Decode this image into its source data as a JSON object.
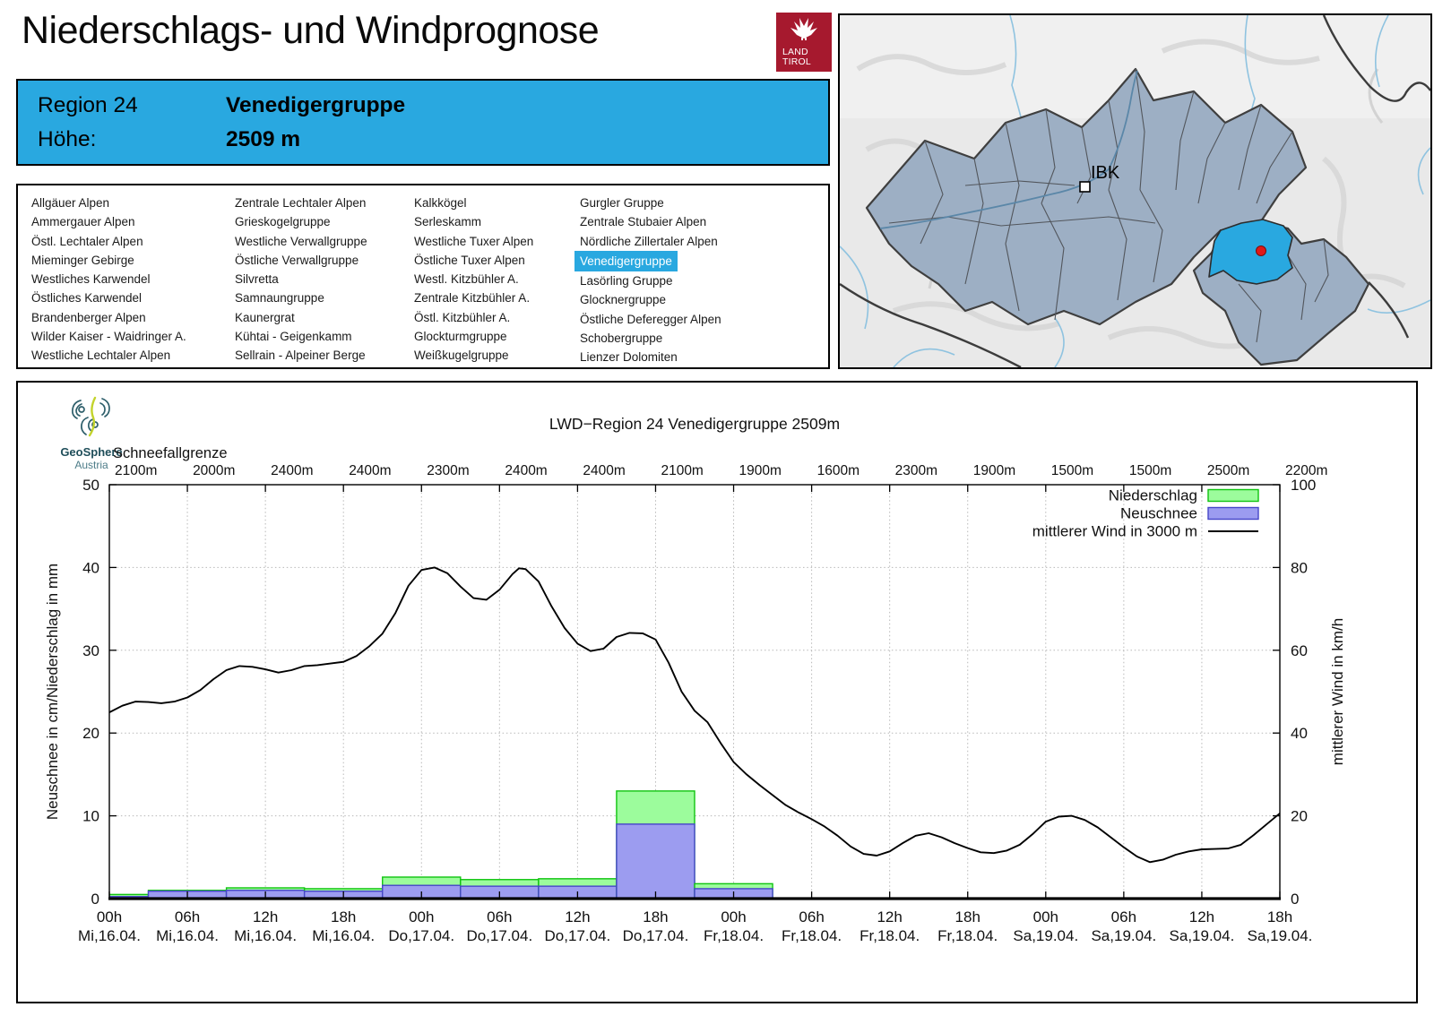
{
  "page": {
    "title": "Niederschlags- und Windprognose"
  },
  "land_tirol_logo": {
    "line1": "LAND",
    "line2": "TIROL"
  },
  "header": {
    "region_label": "Region 24",
    "region_name": "Venedigergruppe",
    "hoehe_label": "Höhe:",
    "hoehe_value": "2509 m"
  },
  "region_list": {
    "columns": [
      [
        "Allgäuer Alpen",
        "Ammergauer Alpen",
        "Östl. Lechtaler Alpen",
        "Mieminger Gebirge",
        "Westliches Karwendel",
        "Östliches Karwendel",
        "Brandenberger Alpen",
        "Wilder Kaiser - Waidringer A.",
        "Westliche Lechtaler Alpen"
      ],
      [
        "Zentrale Lechtaler Alpen",
        "Grieskogelgruppe",
        "Westliche Verwallgruppe",
        "Östliche Verwallgruppe",
        "Silvretta",
        "Samnaungruppe",
        "Kaunergrat",
        "Kühtai - Geigenkamm",
        "Sellrain - Alpeiner Berge"
      ],
      [
        "Kalkkögel",
        "Serleskamm",
        "Westliche Tuxer Alpen",
        "Östliche Tuxer Alpen",
        "Westl. Kitzbühler A.",
        "Zentrale Kitzbühler A.",
        "Östl. Kitzbühler A.",
        "Glockturmgruppe",
        "Weißkugelgruppe"
      ],
      [
        "Gurgler Gruppe",
        "Zentrale Stubaier Alpen",
        "Nördliche Zillertaler Alpen",
        "Venedigergruppe",
        "Lasörling Gruppe",
        "Glocknergruppe",
        "Östliche Deferegger Alpen",
        "Schobergruppe",
        "Lienzer Dolomiten"
      ]
    ],
    "highlighted": "Venedigergruppe"
  },
  "map": {
    "city_label": "IBK"
  },
  "geosphere": {
    "line1": "GeoSphere",
    "line2": "Austria"
  },
  "colors": {
    "accent_blue": "#29a8e0",
    "land_tirol_red": "#a6192e",
    "niederschlag_fill": "#9cfc9c",
    "niederschlag_border": "#10c410",
    "neuschnee_fill": "#9c9cf0",
    "neuschnee_border": "#4646c8",
    "wind_line": "#000000",
    "map_region_fill": "#9dafc4",
    "map_highlight": "#29a8e0",
    "marker_red": "#e01818"
  },
  "chart_data": {
    "type": "bar",
    "title": "LWD−Region 24 Venedigergruppe 2509m",
    "snowline_label": "Schneefallgrenze",
    "snowline_values": [
      "2100m",
      "2000m",
      "2400m",
      "2400m",
      "2300m",
      "2400m",
      "2400m",
      "2100m",
      "1900m",
      "1600m",
      "2300m",
      "1900m",
      "1500m",
      "1500m",
      "2500m",
      "2200m"
    ],
    "ylabel_left": "Neuschnee in cm/Niederschlag in mm",
    "ylabel_right": "mittlerer Wind in km/h",
    "ylim_left": [
      0,
      50
    ],
    "ylim_right": [
      0,
      100
    ],
    "yticks_left": [
      0,
      10,
      20,
      30,
      40,
      50
    ],
    "yticks_right": [
      0,
      20,
      40,
      60,
      80,
      100
    ],
    "x_hours_range": [
      0,
      90
    ],
    "xtick_step_hours": 6,
    "xtick_hours": [
      "00h",
      "06h",
      "12h",
      "18h",
      "00h",
      "06h",
      "12h",
      "18h",
      "00h",
      "06h",
      "12h",
      "18h",
      "00h",
      "06h",
      "12h",
      "18h"
    ],
    "xtick_dates": [
      "Mi,16.04.",
      "Mi,16.04.",
      "Mi,16.04.",
      "Mi,16.04.",
      "Do,17.04.",
      "Do,17.04.",
      "Do,17.04.",
      "Do,17.04.",
      "Fr,18.04.",
      "Fr,18.04.",
      "Fr,18.04.",
      "Fr,18.04.",
      "Sa,19.04.",
      "Sa,19.04.",
      "Sa,19.04.",
      "Sa,19.04."
    ],
    "grid": true,
    "legend_position": "top-right",
    "legend": [
      {
        "label": "Niederschlag",
        "type": "box",
        "fill": "#9cfc9c",
        "border": "#10c410"
      },
      {
        "label": "Neuschnee",
        "type": "box",
        "fill": "#9c9cf0",
        "border": "#4646c8"
      },
      {
        "label": "mittlerer Wind in 3000 m",
        "type": "line",
        "color": "#000000"
      }
    ],
    "bars": {
      "interval_hours": 6,
      "centered_on_ticks": true,
      "niederschlag_mm": [
        0.5,
        1.0,
        1.3,
        1.2,
        2.6,
        2.3,
        2.4,
        13,
        1.8,
        0,
        0,
        0,
        0,
        0,
        0,
        0
      ],
      "neuschnee_cm": [
        0.25,
        0.9,
        1.0,
        0.9,
        1.6,
        1.5,
        1.5,
        9,
        1.2,
        0,
        0,
        0,
        0,
        0,
        0,
        0
      ]
    },
    "wind_series": {
      "name": "mittlerer Wind in 3000 m",
      "units": "km/h",
      "points": [
        [
          0,
          45
        ],
        [
          1,
          46.6
        ],
        [
          2,
          47.6
        ],
        [
          3,
          47.5
        ],
        [
          4,
          47.2
        ],
        [
          5,
          47.6
        ],
        [
          6,
          48.6
        ],
        [
          7,
          50.4
        ],
        [
          8,
          53
        ],
        [
          9,
          55.2
        ],
        [
          10,
          56.2
        ],
        [
          11,
          56
        ],
        [
          12,
          55.4
        ],
        [
          13,
          54.6
        ],
        [
          14,
          55.2
        ],
        [
          15,
          56.2
        ],
        [
          16,
          56.4
        ],
        [
          17,
          56.8
        ],
        [
          18,
          57.2
        ],
        [
          19,
          58.6
        ],
        [
          20,
          61
        ],
        [
          21,
          64
        ],
        [
          22,
          69
        ],
        [
          23,
          75.6
        ],
        [
          24,
          79.4
        ],
        [
          25,
          80
        ],
        [
          26,
          78.6
        ],
        [
          27,
          75.4
        ],
        [
          28,
          72.6
        ],
        [
          29,
          72.2
        ],
        [
          30,
          74.6
        ],
        [
          31,
          78.4
        ],
        [
          31.5,
          79.8
        ],
        [
          32,
          79.6
        ],
        [
          33,
          76.6
        ],
        [
          34,
          70.6
        ],
        [
          35,
          65.4
        ],
        [
          36,
          61.6
        ],
        [
          37,
          59.8
        ],
        [
          38,
          60.4
        ],
        [
          39,
          63.2
        ],
        [
          40,
          64.2
        ],
        [
          41,
          64.1
        ],
        [
          42,
          62.6
        ],
        [
          43,
          57
        ],
        [
          44,
          50
        ],
        [
          45,
          45.4
        ],
        [
          46,
          42.6
        ],
        [
          47,
          37.6
        ],
        [
          48,
          33
        ],
        [
          49,
          30
        ],
        [
          50,
          27.4
        ],
        [
          51,
          25
        ],
        [
          52,
          22.6
        ],
        [
          53,
          20.8
        ],
        [
          54,
          19.2
        ],
        [
          55,
          17.4
        ],
        [
          56,
          15.2
        ],
        [
          57,
          12.6
        ],
        [
          58,
          10.8
        ],
        [
          59,
          10.4
        ],
        [
          60,
          11.4
        ],
        [
          61,
          13.4
        ],
        [
          62,
          15.2
        ],
        [
          63,
          15.8
        ],
        [
          64,
          14.8
        ],
        [
          65,
          13.4
        ],
        [
          66,
          12.2
        ],
        [
          67,
          11.2
        ],
        [
          68,
          11
        ],
        [
          69,
          11.6
        ],
        [
          70,
          13
        ],
        [
          71,
          15.6
        ],
        [
          72,
          18.6
        ],
        [
          73,
          19.8
        ],
        [
          74,
          20
        ],
        [
          75,
          19
        ],
        [
          76,
          17.2
        ],
        [
          77,
          14.8
        ],
        [
          78,
          12.4
        ],
        [
          79,
          10.2
        ],
        [
          80,
          8.8
        ],
        [
          81,
          9.4
        ],
        [
          82,
          10.6
        ],
        [
          83,
          11.4
        ],
        [
          84,
          11.9
        ],
        [
          85,
          12
        ],
        [
          86,
          12.1
        ],
        [
          87,
          13
        ],
        [
          88,
          15.4
        ],
        [
          89,
          18
        ],
        [
          90,
          20.6
        ]
      ]
    }
  }
}
